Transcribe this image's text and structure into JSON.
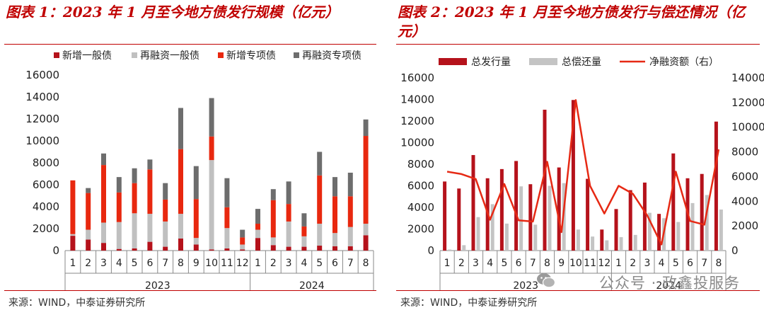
{
  "chart_data": [
    {
      "type": "bar",
      "stacked": true,
      "title": "图表 1：2023 年 1 月至今地方债发行规模（亿元）",
      "source": "来源：WIND，中泰证券研究所",
      "categories": [
        "1",
        "2",
        "3",
        "4",
        "5",
        "6",
        "7",
        "8",
        "9",
        "10",
        "11",
        "12",
        "1",
        "2",
        "3",
        "4",
        "5",
        "6",
        "7",
        "8"
      ],
      "year_groups": [
        {
          "label": "2023",
          "count": 12
        },
        {
          "label": "2024",
          "count": 8
        }
      ],
      "ylim": [
        0,
        16000
      ],
      "yticks": [
        "0",
        "2000",
        "4000",
        "6000",
        "8000",
        "10000",
        "12000",
        "14000",
        "16000"
      ],
      "grid": false,
      "legend_position": "top",
      "series": [
        {
          "name": "新增一般债",
          "color": "#b5121b",
          "values": [
            1350,
            1000,
            700,
            150,
            200,
            800,
            350,
            1100,
            550,
            100,
            200,
            100,
            1150,
            500,
            350,
            350,
            450,
            400,
            400,
            1400
          ]
        },
        {
          "name": "再融资一般债",
          "color": "#c0c0c0",
          "values": [
            150,
            900,
            1850,
            2450,
            3200,
            2550,
            2300,
            2250,
            600,
            8150,
            1850,
            450,
            750,
            700,
            2300,
            950,
            2000,
            1200,
            1750,
            1050
          ]
        },
        {
          "name": "新增专项债",
          "color": "#e8280f",
          "values": [
            4900,
            3350,
            5250,
            2700,
            2750,
            4050,
            2000,
            5900,
            3550,
            2150,
            1900,
            650,
            550,
            3400,
            1600,
            900,
            4400,
            3350,
            2800,
            8000
          ]
        },
        {
          "name": "再融资专项债",
          "color": "#6d6d6d",
          "values": [
            0,
            450,
            1050,
            1400,
            1350,
            900,
            1500,
            3750,
            3000,
            3500,
            2650,
            700,
            1350,
            1000,
            2050,
            1200,
            2150,
            1750,
            2150,
            1500
          ]
        }
      ]
    },
    {
      "type": "bar",
      "combo": "bar+line",
      "title": "图表 2：2023 年 1 月至今地方债发行与偿还情况（亿元）",
      "source": "来源：WIND，中泰证券研究所",
      "categories": [
        "1",
        "2",
        "3",
        "4",
        "5",
        "6",
        "7",
        "8",
        "9",
        "10",
        "11",
        "12",
        "1",
        "2",
        "3",
        "4",
        "5",
        "6",
        "7",
        "8"
      ],
      "year_groups": [
        {
          "label": "2023",
          "count": 12
        },
        {
          "label": "2024",
          "count": 8
        }
      ],
      "ylim": [
        0,
        16000
      ],
      "yticks": [
        "0",
        "2000",
        "4000",
        "6000",
        "8000",
        "10000",
        "12000",
        "14000",
        "16000"
      ],
      "y2lim": [
        0,
        14000
      ],
      "y2ticks": [
        "0",
        "2000",
        "4000",
        "6000",
        "8000",
        "10000",
        "12000",
        "14000"
      ],
      "grid": false,
      "legend_position": "top",
      "series": [
        {
          "name": "总发行量",
          "type": "bar",
          "color": "#b5121b",
          "values": [
            6400,
            5750,
            8850,
            6700,
            7550,
            8300,
            6150,
            13050,
            7700,
            13950,
            6650,
            1950,
            3850,
            5600,
            6300,
            3400,
            9000,
            6700,
            7100,
            11950
          ]
        },
        {
          "name": "总偿还量",
          "type": "bar",
          "color": "#c4c4c4",
          "values": [
            100,
            500,
            3100,
            4300,
            2500,
            5950,
            2400,
            6000,
            6250,
            1950,
            1300,
            950,
            1250,
            1450,
            3500,
            3000,
            2650,
            4400,
            5150,
            3800
          ]
        },
        {
          "name": "净融资额（右）",
          "type": "line",
          "axis": "right",
          "color": "#e62914",
          "values": [
            6400,
            6200,
            5800,
            2500,
            5400,
            2450,
            2350,
            7200,
            1500,
            12200,
            5250,
            3000,
            5250,
            4600,
            2850,
            500,
            6400,
            2400,
            2100,
            8200
          ]
        }
      ]
    }
  ],
  "watermark": {
    "text": "公众号 · 政鑫投服务",
    "icon": "wechat-icon"
  }
}
